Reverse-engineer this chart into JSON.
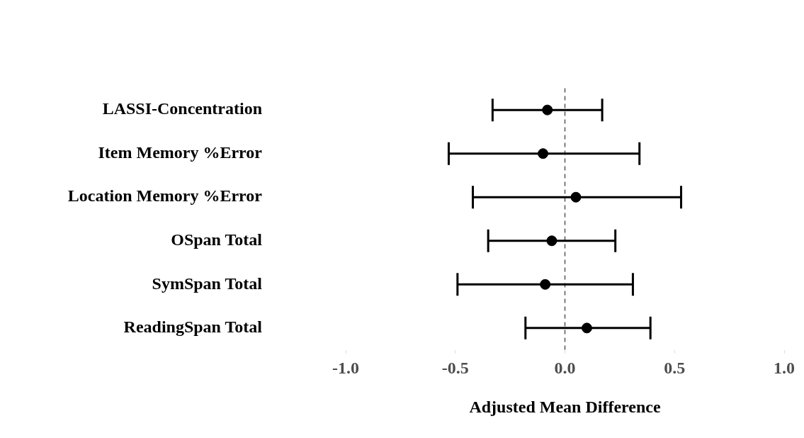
{
  "chart_data": {
    "type": "scatter",
    "orientation": "horizontal",
    "xlabel": "Adjusted Mean Difference",
    "categories": [
      "LASSI-Concentration",
      "Item Memory %Error",
      "Location Memory %Error",
      "OSpan Total",
      "SymSpan Total",
      "ReadingSpan Total"
    ],
    "series": [
      {
        "color": "#000000",
        "values": [
          -0.08,
          -0.1,
          0.05,
          -0.06,
          -0.09,
          0.1
        ],
        "errors": [
          [
            -0.33,
            0.17
          ],
          [
            -0.53,
            0.34
          ],
          [
            -0.42,
            0.53
          ],
          [
            -0.35,
            0.23
          ],
          [
            -0.49,
            0.31
          ],
          [
            -0.18,
            0.39
          ]
        ]
      }
    ],
    "marker": "circle",
    "xlim": [
      -1.0,
      1.0
    ],
    "xticks": [
      {
        "value": -1,
        "label": "-1.0"
      },
      {
        "value": -0.5,
        "label": "-0.5"
      },
      {
        "value": 0,
        "label": "0.0"
      },
      {
        "value": 0.5,
        "label": "0.5"
      },
      {
        "value": 1,
        "label": "1.0"
      }
    ],
    "ref_lines": [
      {
        "axis": "x",
        "value": 0,
        "color": "#555555",
        "line_style": "dashed"
      }
    ]
  }
}
